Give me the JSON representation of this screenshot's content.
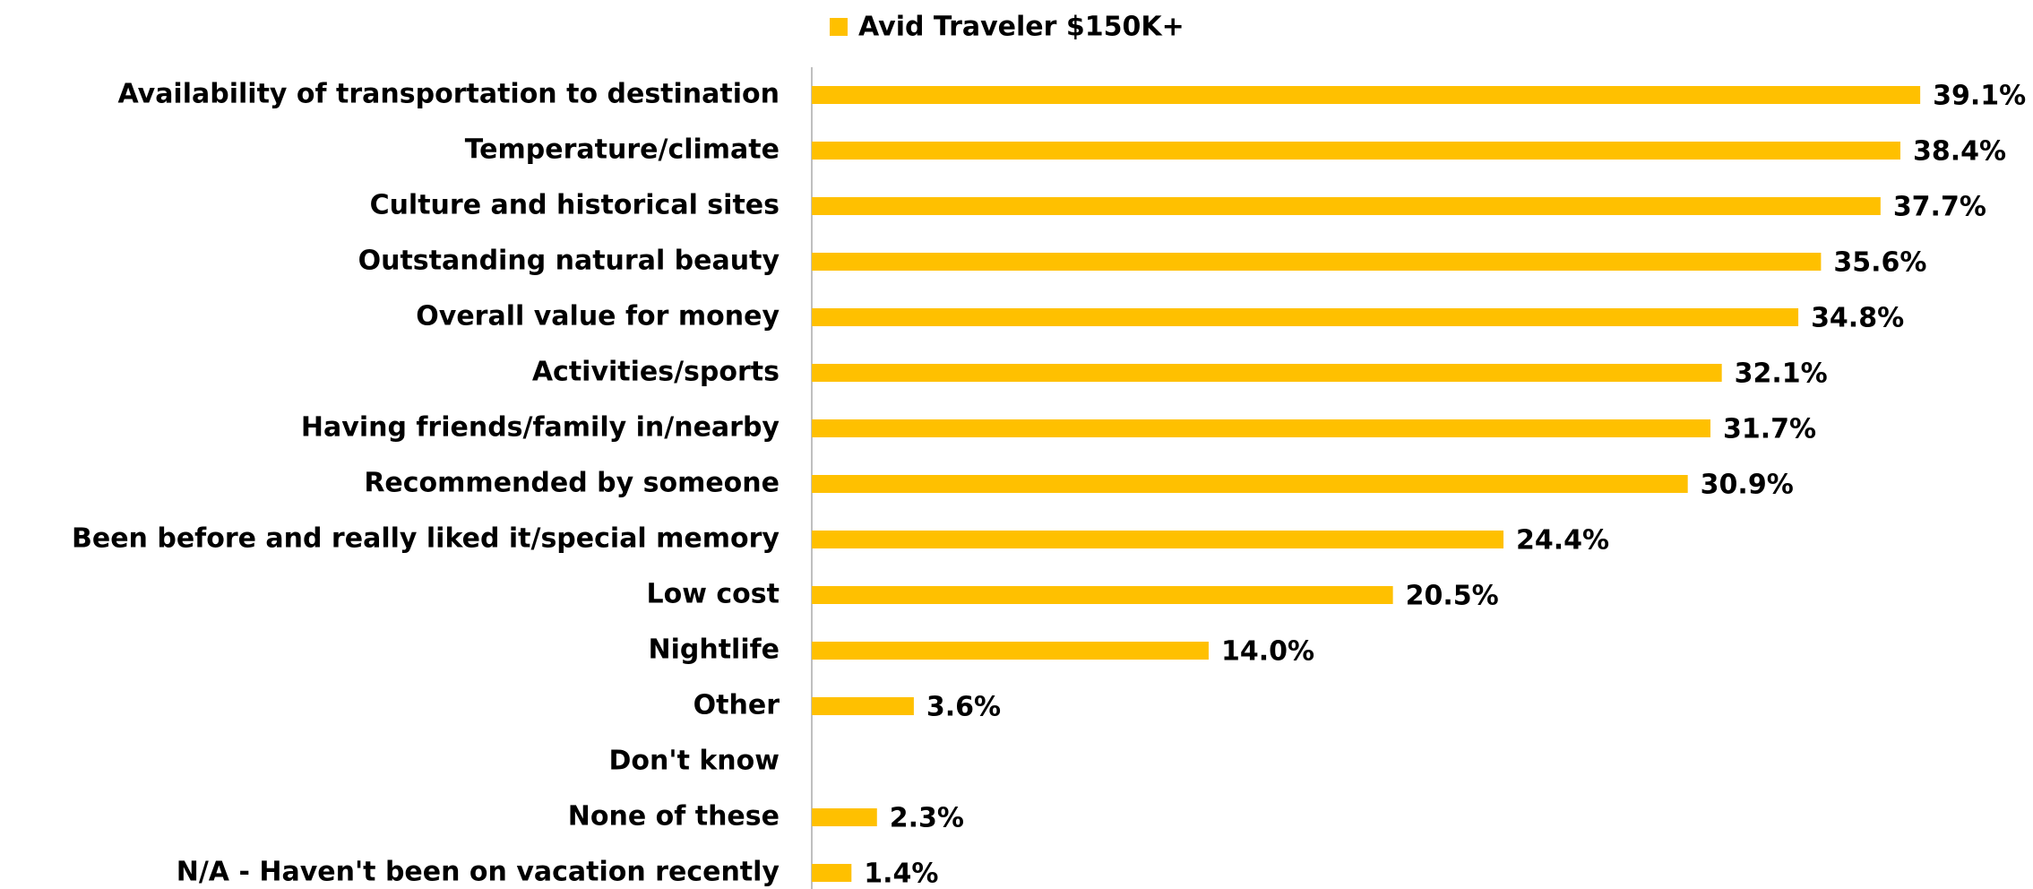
{
  "chart_data": {
    "type": "bar",
    "orientation": "horizontal",
    "categories": [
      "Availability of transportation to destination",
      "Temperature/climate",
      "Culture and historical sites",
      "Outstanding natural beauty",
      "Overall value for money",
      "Activities/sports",
      "Having friends/family in/nearby",
      "Recommended by someone",
      "Been before and really liked it/special memory",
      "Low cost",
      "Nightlife",
      "Other",
      "Don't know",
      "None of these",
      "N/A - Haven't been on vacation recently"
    ],
    "series": [
      {
        "name": "Avid Traveler $150K+",
        "color": "#ffc000",
        "values": [
          39.1,
          38.4,
          37.7,
          35.6,
          34.8,
          32.1,
          31.7,
          30.9,
          24.4,
          20.5,
          14.0,
          3.6,
          null,
          2.3,
          1.4
        ],
        "value_labels": [
          "39.1%",
          "38.4%",
          "37.7%",
          "35.6%",
          "34.8%",
          "32.1%",
          "31.7%",
          "30.9%",
          "24.4%",
          "20.5%",
          "14.0%",
          "3.6%",
          null,
          "2.3%",
          "1.4%"
        ]
      }
    ],
    "legend": "top"
  }
}
